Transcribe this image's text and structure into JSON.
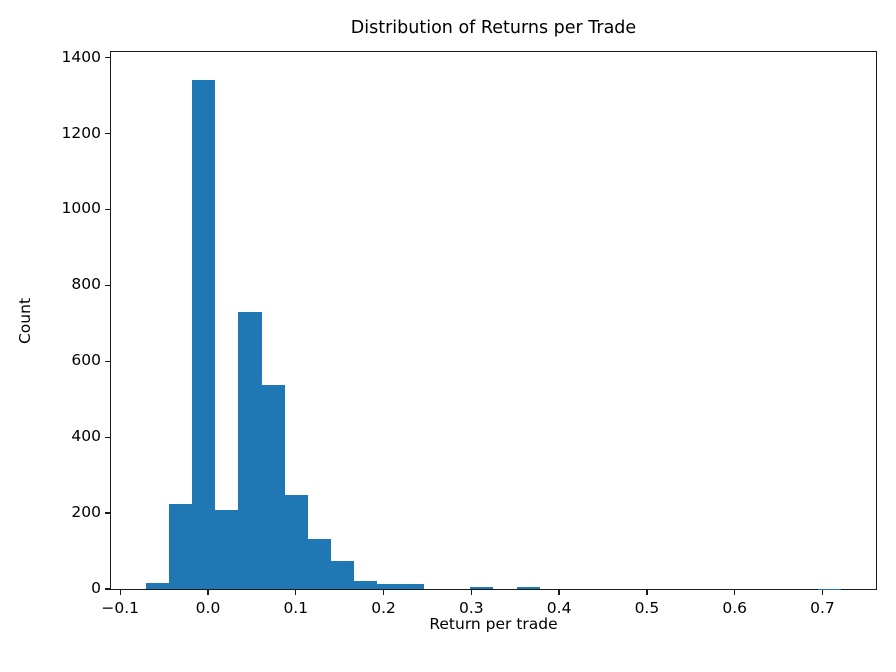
{
  "figure": {
    "title": "Distribution of Returns per Trade",
    "xlabel": "Return per trade",
    "ylabel": "Count"
  },
  "chart_data": {
    "type": "bar",
    "subtype": "histogram",
    "title": "Distribution of Returns per Trade",
    "xlabel": "Return per trade",
    "ylabel": "Count",
    "bar_color": "#1f77b4",
    "grid": false,
    "legend_position": "none",
    "xlim": [
      -0.1105,
      0.761
    ],
    "ylim": [
      0,
      1415
    ],
    "x_ticks": [
      -0.1,
      0.0,
      0.1,
      0.2,
      0.3,
      0.4,
      0.5,
      0.6,
      0.7
    ],
    "x_tick_labels": [
      "−0.1",
      "0.0",
      "0.1",
      "0.2",
      "0.3",
      "0.4",
      "0.5",
      "0.6",
      "0.7"
    ],
    "y_ticks": [
      0,
      200,
      400,
      600,
      800,
      1000,
      1200,
      1400
    ],
    "y_tick_labels": [
      "0",
      "200",
      "400",
      "600",
      "800",
      "1000",
      "1200",
      "1400"
    ],
    "bin_edges": [
      -0.071,
      -0.0446,
      -0.0182,
      0.0082,
      0.0346,
      0.061,
      0.0875,
      0.1139,
      0.1403,
      0.1667,
      0.1931,
      0.2195,
      0.2459,
      0.2723,
      0.2988,
      0.3252,
      0.3516,
      0.378,
      0.4044,
      0.4308,
      0.4572,
      0.4836,
      0.5101,
      0.5365,
      0.5629,
      0.5893,
      0.6157,
      0.6421,
      0.6685,
      0.695,
      0.7214
    ],
    "counts": [
      15,
      224,
      1340,
      208,
      729,
      538,
      249,
      132,
      73,
      22,
      13,
      12,
      0,
      0,
      4,
      0,
      4,
      0,
      0,
      0,
      0,
      0,
      0,
      0,
      0,
      0,
      0,
      0,
      0,
      1
    ]
  }
}
